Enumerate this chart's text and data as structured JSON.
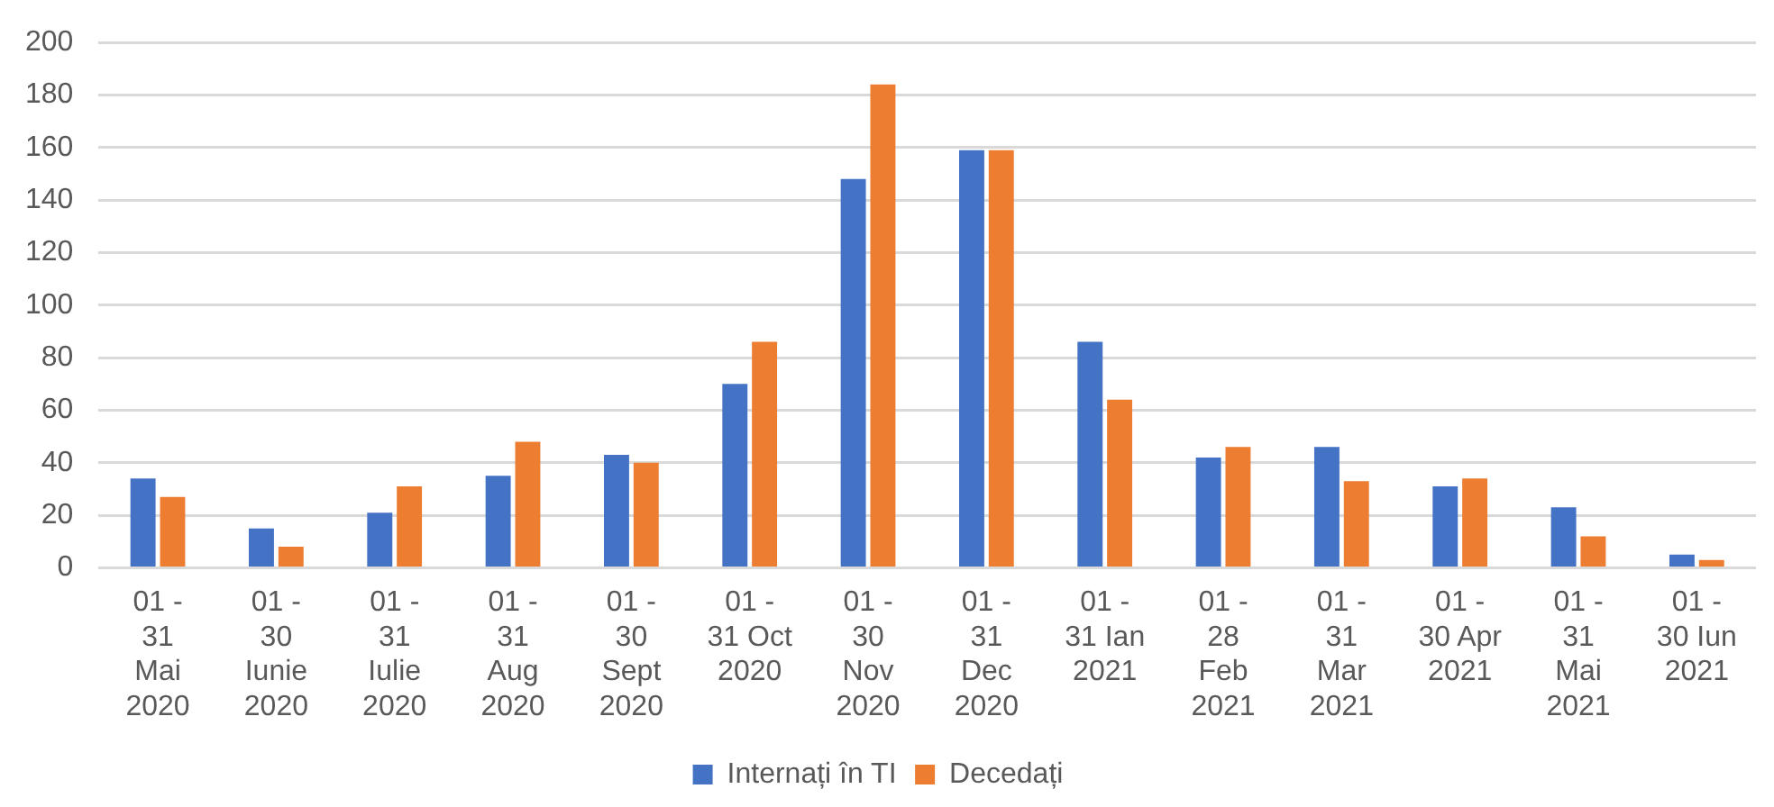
{
  "chart_data": {
    "type": "bar",
    "categories": [
      "01 - 31 Mai 2020",
      "01 - 30 Iunie 2020",
      "01 - 31 Iulie 2020",
      "01 - 31 Aug 2020",
      "01 - 30 Sept 2020",
      "01 - 31 Oct 2020",
      "01 - 30 Nov 2020",
      "01 - 31 Dec 2020",
      "01 - 31 Ian 2021",
      "01 - 28 Feb 2021",
      "01 - 31 Mar 2021",
      "01 - 30 Apr 2021",
      "01 - 31 Mai 2021",
      "01 - 30 Iun 2021"
    ],
    "series": [
      {
        "name": "Internați în TI",
        "color": "#4472c4",
        "values": [
          34,
          15,
          21,
          35,
          43,
          70,
          148,
          159,
          86,
          42,
          46,
          31,
          23,
          5
        ]
      },
      {
        "name": "Decedați",
        "color": "#ed7d31",
        "values": [
          27,
          8,
          31,
          48,
          40,
          86,
          184,
          159,
          64,
          46,
          33,
          34,
          12,
          3
        ]
      }
    ],
    "ylim": [
      0,
      200
    ],
    "yticks": [
      0,
      20,
      40,
      60,
      80,
      100,
      120,
      140,
      160,
      180,
      200
    ],
    "grid": "y",
    "legend": "bottom"
  }
}
